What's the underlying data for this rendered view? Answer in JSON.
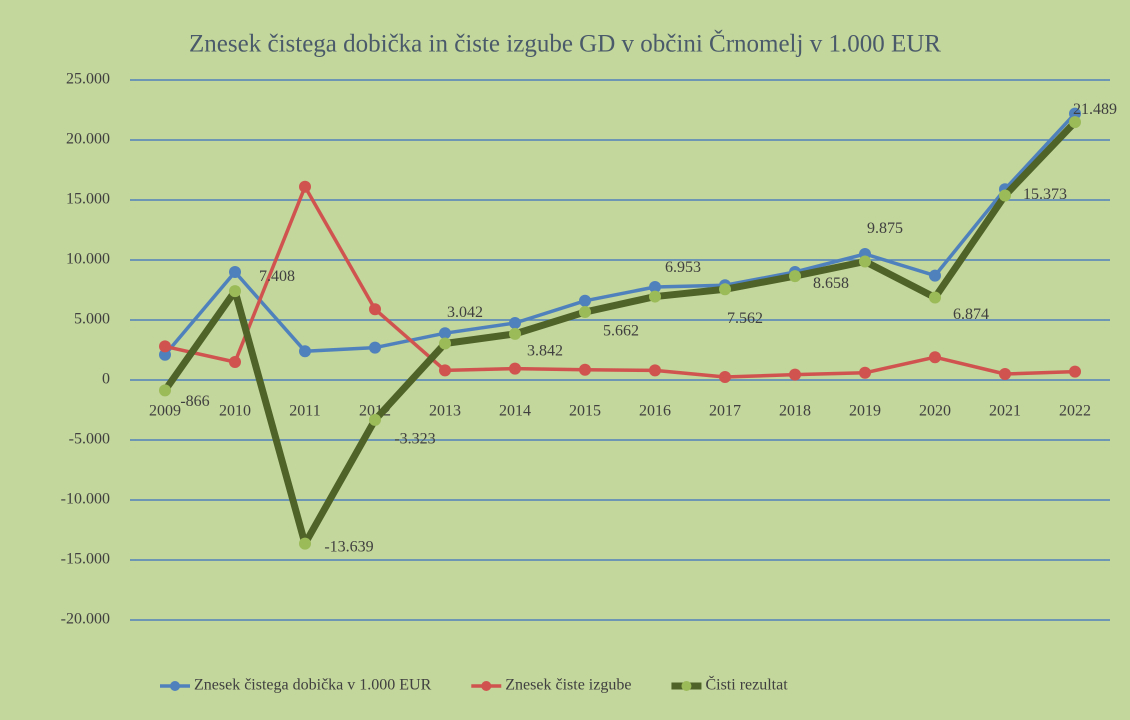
{
  "chart_data": {
    "type": "line",
    "title": "Znesek čistega dobička in čiste izgube GD v občini Črnomelj v 1.000 EUR",
    "categories": [
      "2009",
      "2010",
      "2011",
      "2012",
      "2013",
      "2014",
      "2015",
      "2016",
      "2017",
      "2018",
      "2019",
      "2020",
      "2021",
      "2022"
    ],
    "series": [
      {
        "name": "Znesek čistega dobička v 1.000 EUR",
        "color": "#4f81bd",
        "marker_color": "#4f81bd",
        "values": [
          2100,
          9000,
          2400,
          2700,
          3900,
          4750,
          6600,
          7750,
          7900,
          9000,
          10500,
          8700,
          15900,
          22200
        ]
      },
      {
        "name": "Znesek čiste izgube",
        "color": "#d05350",
        "marker_color": "#d05350",
        "values": [
          2800,
          1500,
          16100,
          5900,
          800,
          950,
          850,
          800,
          250,
          450,
          600,
          1900,
          500,
          700
        ]
      },
      {
        "name": "Čisti rezultat",
        "color": "#4f6228",
        "marker_color": "#9bbb59",
        "values": [
          -866,
          7408,
          -13639,
          -3323,
          3042,
          3842,
          5662,
          6953,
          7562,
          8658,
          9875,
          6874,
          15373,
          21489
        ],
        "value_labels": [
          "-866",
          "7.408",
          "-13.639",
          "-3.323",
          "3.042",
          "3.842",
          "5.662",
          "6.953",
          "7.562",
          "8.658",
          "9.875",
          "6.874",
          "15.373",
          "21.489"
        ]
      }
    ],
    "ylim": [
      -20000,
      25000
    ],
    "yticks": [
      {
        "value": -20000,
        "label": "-20.000"
      },
      {
        "value": -15000,
        "label": "-15.000"
      },
      {
        "value": -10000,
        "label": "-10.000"
      },
      {
        "value": -5000,
        "label": "-5.000"
      },
      0,
      {
        "value": 5000,
        "label": "5.000"
      },
      {
        "value": 10000,
        "label": "10.000"
      },
      {
        "value": 15000,
        "label": "15.000"
      },
      {
        "value": 20000,
        "label": "20.000"
      },
      {
        "value": 25000,
        "label": "25.000"
      }
    ],
    "grid": true,
    "legend": "bottom"
  }
}
